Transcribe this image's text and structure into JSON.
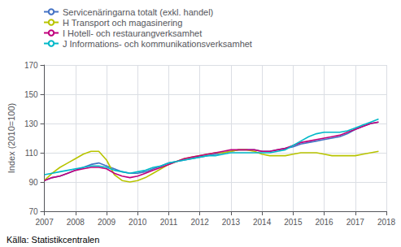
{
  "chart_data": {
    "type": "line",
    "y_label": "Index (2010=100)",
    "annotation": "Källa: Statistikcentralen",
    "x": [
      2007.0,
      2007.25,
      2007.5,
      2007.75,
      2008.0,
      2008.25,
      2008.5,
      2008.75,
      2009.0,
      2009.25,
      2009.5,
      2009.75,
      2010.0,
      2010.25,
      2010.5,
      2010.75,
      2011.0,
      2011.25,
      2011.5,
      2011.75,
      2012.0,
      2012.25,
      2012.5,
      2012.75,
      2013.0,
      2013.25,
      2013.5,
      2013.75,
      2014.0,
      2014.25,
      2014.5,
      2014.75,
      2015.0,
      2015.25,
      2015.5,
      2015.75,
      2016.0,
      2016.25,
      2016.5,
      2016.75,
      2017.0,
      2017.25,
      2017.5,
      2017.75
    ],
    "series": [
      {
        "name": "Servicenäringarna totalt (exkl. handel)",
        "color": "#4472c4",
        "values": [
          91,
          93,
          94,
          96,
          98,
          100,
          102,
          103,
          101,
          99,
          97,
          96,
          96,
          97,
          99,
          101,
          103,
          104,
          105,
          106,
          107,
          108,
          109,
          110,
          111,
          112,
          112,
          112,
          111,
          111,
          112,
          113,
          114,
          116,
          117,
          118,
          119,
          120,
          121,
          123,
          126,
          128,
          130,
          131
        ]
      },
      {
        "name": "H Transport och magasinering",
        "color": "#b8c400",
        "values": [
          91,
          96,
          100,
          103,
          106,
          109,
          111,
          111,
          105,
          95,
          91,
          90,
          91,
          93,
          96,
          99,
          102,
          104,
          106,
          107,
          108,
          109,
          110,
          110,
          111,
          112,
          112,
          111,
          109,
          108,
          108,
          108,
          109,
          110,
          110,
          110,
          109,
          108,
          108,
          108,
          108,
          109,
          110,
          111
        ]
      },
      {
        "name": "I Hotell- och restaurangverksamhet",
        "color": "#c0007c",
        "values": [
          91,
          93,
          94,
          96,
          98,
          99,
          100,
          100,
          99,
          96,
          94,
          93,
          94,
          96,
          98,
          100,
          102,
          104,
          106,
          107,
          108,
          109,
          110,
          111,
          112,
          112,
          112,
          112,
          111,
          111,
          112,
          113,
          115,
          117,
          118,
          119,
          120,
          121,
          122,
          124,
          126,
          128,
          130,
          131
        ]
      },
      {
        "name": "J Informations- och kommunikationsverksamhet",
        "color": "#00b8c8",
        "values": [
          95,
          96,
          97,
          98,
          99,
          100,
          101,
          101,
          100,
          98,
          97,
          96,
          97,
          98,
          100,
          101,
          103,
          104,
          105,
          106,
          107,
          108,
          108,
          109,
          110,
          110,
          110,
          110,
          110,
          110,
          111,
          112,
          115,
          118,
          121,
          123,
          124,
          124,
          124,
          125,
          127,
          129,
          131,
          133
        ]
      }
    ],
    "xlim": [
      2007,
      2018
    ],
    "xticks": [
      2007,
      2008,
      2009,
      2010,
      2011,
      2012,
      2013,
      2014,
      2015,
      2016,
      2017,
      2018
    ],
    "ylim": [
      70,
      170
    ],
    "yticks": [
      70,
      90,
      110,
      130,
      150,
      170
    ],
    "grid": true,
    "legend": "upper left"
  }
}
